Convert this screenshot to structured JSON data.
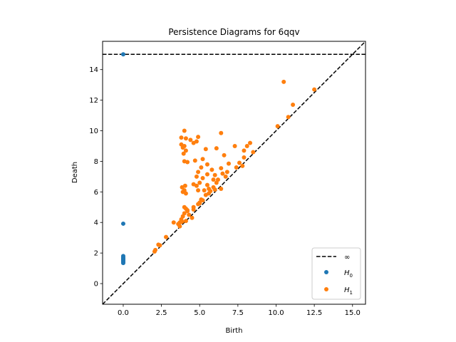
{
  "chart_data": {
    "type": "scatter",
    "title": "Persistence Diagrams for 6qqv",
    "xlabel": "Birth",
    "ylabel": "Death",
    "xlim": [
      -1.35,
      15.85
    ],
    "ylim": [
      -1.35,
      15.85
    ],
    "xticks": [
      0.0,
      2.5,
      5.0,
      7.5,
      10.0,
      12.5,
      15.0
    ],
    "xtick_labels": [
      "0.0",
      "2.5",
      "5.0",
      "7.5",
      "10.0",
      "12.5",
      "15.0"
    ],
    "yticks": [
      0,
      2,
      4,
      6,
      8,
      10,
      12,
      14
    ],
    "ytick_labels": [
      "0",
      "2",
      "4",
      "6",
      "8",
      "10",
      "12",
      "14"
    ],
    "grid": false,
    "legend_position": "bottom-right",
    "infinity_line": {
      "label": "∞",
      "y": 15.0,
      "color": "#000000",
      "style": "dashed"
    },
    "diagonal": {
      "color": "#000000",
      "style": "dashed"
    },
    "series": [
      {
        "name": "H0",
        "label_main": "H",
        "label_sub": "0",
        "color": "#1f77b4",
        "points": [
          [
            0,
            15.0
          ],
          [
            0,
            3.92
          ],
          [
            0,
            1.8
          ],
          [
            0,
            1.72
          ],
          [
            0,
            1.65
          ],
          [
            0,
            1.6
          ],
          [
            0,
            1.55
          ],
          [
            0,
            1.5
          ],
          [
            0,
            1.45
          ],
          [
            0,
            1.4
          ],
          [
            0,
            1.35
          ]
        ]
      },
      {
        "name": "H1",
        "label_main": "H",
        "label_sub": "1",
        "color": "#ff7f0e",
        "points": [
          [
            10.5,
            13.2
          ],
          [
            11.1,
            11.7
          ],
          [
            12.5,
            12.7
          ],
          [
            10.8,
            10.9
          ],
          [
            10.1,
            10.3
          ],
          [
            3.8,
            9.55
          ],
          [
            4.0,
            10.0
          ],
          [
            4.1,
            9.5
          ],
          [
            4.4,
            9.4
          ],
          [
            4.9,
            9.6
          ],
          [
            6.4,
            9.85
          ],
          [
            4.6,
            9.2
          ],
          [
            4.8,
            9.3
          ],
          [
            3.8,
            9.1
          ],
          [
            4.0,
            9.0
          ],
          [
            3.9,
            8.9
          ],
          [
            4.1,
            8.7
          ],
          [
            3.95,
            8.5
          ],
          [
            5.4,
            8.8
          ],
          [
            6.1,
            8.85
          ],
          [
            8.3,
            9.2
          ],
          [
            8.1,
            9.0
          ],
          [
            7.9,
            8.7
          ],
          [
            8.5,
            8.6
          ],
          [
            7.3,
            9.0
          ],
          [
            4.0,
            8.0
          ],
          [
            4.2,
            7.95
          ],
          [
            4.7,
            8.05
          ],
          [
            5.2,
            8.15
          ],
          [
            6.6,
            8.4
          ],
          [
            5.5,
            7.8
          ],
          [
            5.8,
            7.45
          ],
          [
            5.1,
            7.6
          ],
          [
            4.9,
            7.3
          ],
          [
            6.4,
            7.55
          ],
          [
            6.0,
            7.1
          ],
          [
            6.5,
            7.2
          ],
          [
            6.8,
            7.3
          ],
          [
            6.9,
            7.85
          ],
          [
            7.6,
            7.9
          ],
          [
            7.8,
            7.7
          ],
          [
            7.9,
            8.25
          ],
          [
            7.4,
            7.6
          ],
          [
            6.2,
            6.8
          ],
          [
            6.7,
            7.0
          ],
          [
            5.5,
            7.15
          ],
          [
            5.2,
            6.9
          ],
          [
            5.0,
            6.6
          ],
          [
            4.8,
            6.4
          ],
          [
            4.6,
            6.5
          ],
          [
            5.5,
            6.45
          ],
          [
            5.9,
            6.8
          ],
          [
            4.8,
            7.0
          ],
          [
            3.85,
            6.3
          ],
          [
            4.05,
            6.4
          ],
          [
            4.0,
            6.1
          ],
          [
            3.9,
            6.0
          ],
          [
            4.1,
            5.9
          ],
          [
            4.9,
            6.1
          ],
          [
            5.3,
            6.1
          ],
          [
            5.6,
            6.2
          ],
          [
            5.9,
            6.3
          ],
          [
            6.1,
            6.6
          ],
          [
            6.4,
            6.2
          ],
          [
            5.4,
            5.8
          ],
          [
            5.1,
            5.5
          ],
          [
            5.0,
            5.3
          ],
          [
            4.9,
            5.2
          ],
          [
            5.6,
            5.9
          ],
          [
            4.6,
            5.0
          ],
          [
            4.2,
            4.8
          ],
          [
            4.0,
            4.6
          ],
          [
            3.9,
            4.4
          ],
          [
            3.8,
            4.2
          ],
          [
            4.1,
            4.1
          ],
          [
            3.7,
            4.0
          ],
          [
            3.3,
            4.0
          ],
          [
            4.5,
            4.3
          ],
          [
            4.3,
            4.5
          ],
          [
            4.1,
            4.9
          ],
          [
            4.0,
            5.0
          ],
          [
            4.2,
            4.75
          ],
          [
            3.85,
            4.05
          ],
          [
            2.8,
            3.05
          ],
          [
            2.3,
            2.55
          ],
          [
            2.4,
            2.5
          ],
          [
            2.1,
            2.2
          ],
          [
            2.05,
            2.1
          ],
          [
            3.6,
            3.9
          ],
          [
            3.7,
            3.75
          ],
          [
            4.6,
            4.85
          ],
          [
            5.0,
            5.25
          ],
          [
            5.2,
            5.45
          ],
          [
            5.7,
            6.05
          ],
          [
            6.0,
            6.15
          ]
        ]
      }
    ]
  }
}
